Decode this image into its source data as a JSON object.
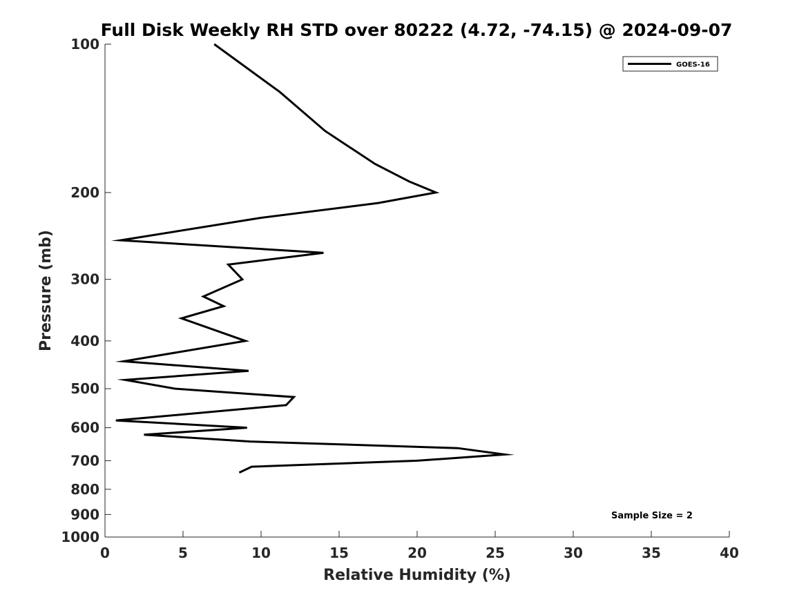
{
  "chart_data": {
    "type": "line",
    "title": "Full Disk Weekly RH STD over 80222 (4.72, -74.15) @ 2024-09-07",
    "xlabel": "Relative Humidity (%)",
    "ylabel": "Pressure (mb)",
    "xlim": [
      0,
      40
    ],
    "ylim": [
      100,
      1000
    ],
    "yscale": "log",
    "y_reversed": true,
    "xticks": [
      0,
      5,
      10,
      15,
      20,
      25,
      30,
      35,
      40
    ],
    "yticks": [
      100,
      200,
      300,
      400,
      500,
      600,
      700,
      800,
      900,
      1000
    ],
    "grid": false,
    "legend": {
      "position": "top-right",
      "entries": [
        "GOES-16"
      ]
    },
    "annotation": "Sample Size = 2",
    "series": [
      {
        "name": "GOES-16",
        "color": "#000000",
        "points": [
          [
            7.0,
            100
          ],
          [
            11.2,
            125
          ],
          [
            14.1,
            150
          ],
          [
            17.3,
            175
          ],
          [
            19.5,
            190
          ],
          [
            21.2,
            200
          ],
          [
            17.5,
            210
          ],
          [
            10.0,
            225
          ],
          [
            1.0,
            250
          ],
          [
            14.0,
            265
          ],
          [
            7.9,
            280
          ],
          [
            8.8,
            300
          ],
          [
            6.3,
            325
          ],
          [
            7.6,
            340
          ],
          [
            4.9,
            360
          ],
          [
            9.0,
            400
          ],
          [
            1.2,
            440
          ],
          [
            9.2,
            460
          ],
          [
            1.3,
            480
          ],
          [
            4.5,
            500
          ],
          [
            12.1,
            520
          ],
          [
            11.6,
            540
          ],
          [
            0.7,
            580
          ],
          [
            9.1,
            600
          ],
          [
            2.5,
            620
          ],
          [
            9.3,
            640
          ],
          [
            22.6,
            660
          ],
          [
            25.6,
            680
          ],
          [
            20.0,
            700
          ],
          [
            9.4,
            720
          ],
          [
            8.6,
            740
          ]
        ]
      }
    ]
  }
}
